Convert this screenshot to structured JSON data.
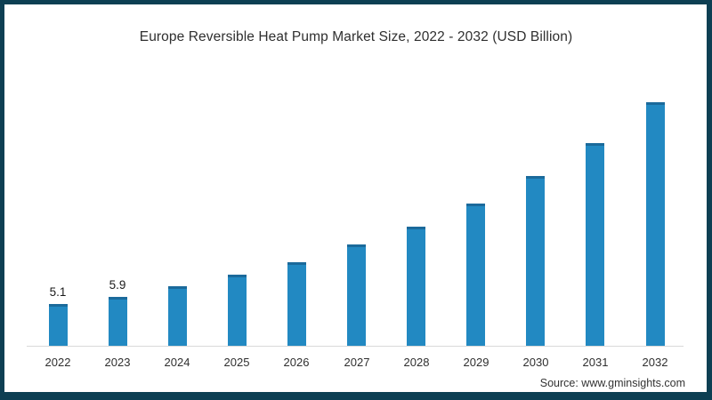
{
  "chart_data": {
    "type": "bar",
    "title": "Europe Reversible Heat Pump Market Size, 2022 - 2032 (USD Billion)",
    "xlabel": "",
    "ylabel": "",
    "categories": [
      "2022",
      "2023",
      "2024",
      "2025",
      "2026",
      "2027",
      "2028",
      "2029",
      "2030",
      "2031",
      "2032"
    ],
    "values": [
      5.1,
      5.9,
      7.2,
      8.7,
      10.2,
      12.3,
      14.5,
      17.3,
      20.6,
      24.6,
      29.6
    ],
    "data_labels": [
      "5.1",
      "5.9",
      "",
      "",
      "",
      "",
      "",
      "",
      "",
      "",
      ""
    ],
    "ylim": [
      0,
      32
    ],
    "grid": false,
    "legend_position": "none",
    "colors": {
      "bar": "#2289c2",
      "bar_cap": "#1b6a9b",
      "axis_line": "#d9d9d9",
      "frame_border": "#0d3f53",
      "title_text": "#2f2f2f",
      "label_text": "#1a1a1a"
    }
  },
  "source": {
    "text": "Source: www.gminsights.com"
  }
}
